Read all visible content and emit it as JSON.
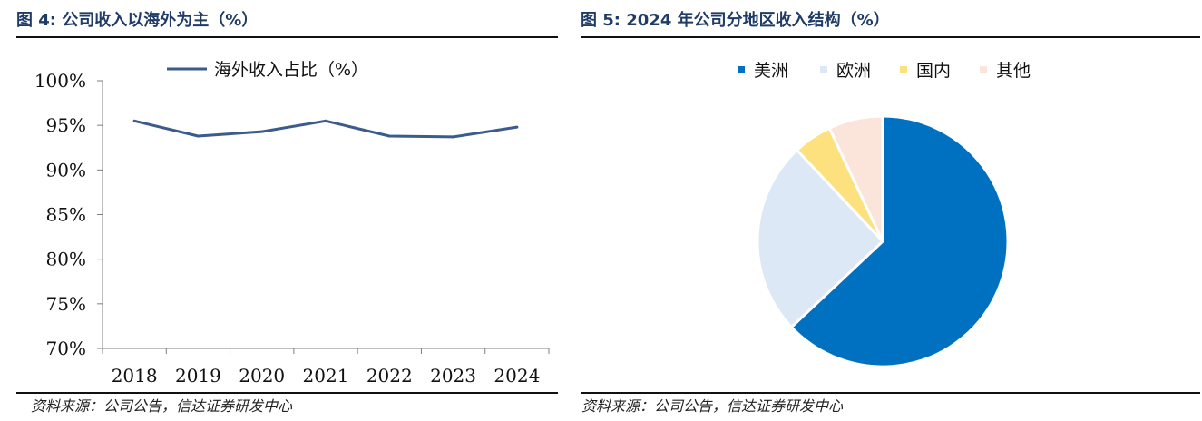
{
  "left_figure": {
    "title": "图 4:  公司收入以海外为主（%）",
    "source": "资料来源：公司公告，信达证券研发中心"
  },
  "right_figure": {
    "title": "图 5:  2024 年公司分地区收入结构（%）",
    "source": "资料来源：公司公告，信达证券研发中心"
  },
  "chart_data": [
    {
      "type": "line",
      "x": [
        "2018",
        "2019",
        "2020",
        "2021",
        "2022",
        "2023",
        "2024"
      ],
      "series": [
        {
          "name": "海外收入占比（%）",
          "values": [
            95.5,
            93.8,
            94.3,
            95.5,
            93.8,
            93.7,
            94.8
          ],
          "color": "#3a5b8c"
        }
      ],
      "ylim": [
        70,
        100
      ],
      "yticks": [
        "100%",
        "95%",
        "90%",
        "85%",
        "80%",
        "75%",
        "70%"
      ],
      "ytick_values": [
        100,
        95,
        90,
        85,
        80,
        75,
        70
      ],
      "legend_position": "top",
      "grid": false
    },
    {
      "type": "pie",
      "labels": [
        "美洲",
        "欧洲",
        "国内",
        "其他"
      ],
      "values": [
        63,
        25,
        5,
        7
      ],
      "colors": [
        "#0070c0",
        "#dce8f5",
        "#fde17f",
        "#fbe5da"
      ],
      "legend_position": "top",
      "start": "top, clockwise"
    }
  ]
}
